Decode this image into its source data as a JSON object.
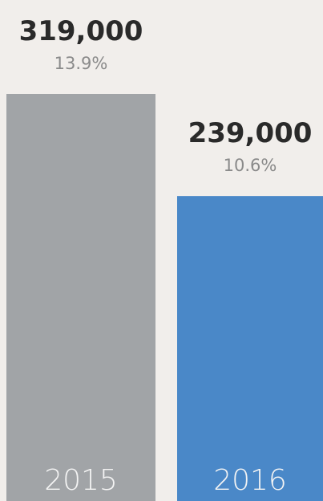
{
  "chart_data": {
    "type": "bar",
    "categories": [
      "2015",
      "2016"
    ],
    "values": [
      319000,
      239000
    ],
    "value_labels": [
      "319,000",
      "239,000"
    ],
    "percent_values": [
      13.9,
      10.6
    ],
    "percent_labels": [
      "13.9%",
      "10.6%"
    ],
    "colors": [
      "#a1a4a7",
      "#4a88c8"
    ]
  }
}
